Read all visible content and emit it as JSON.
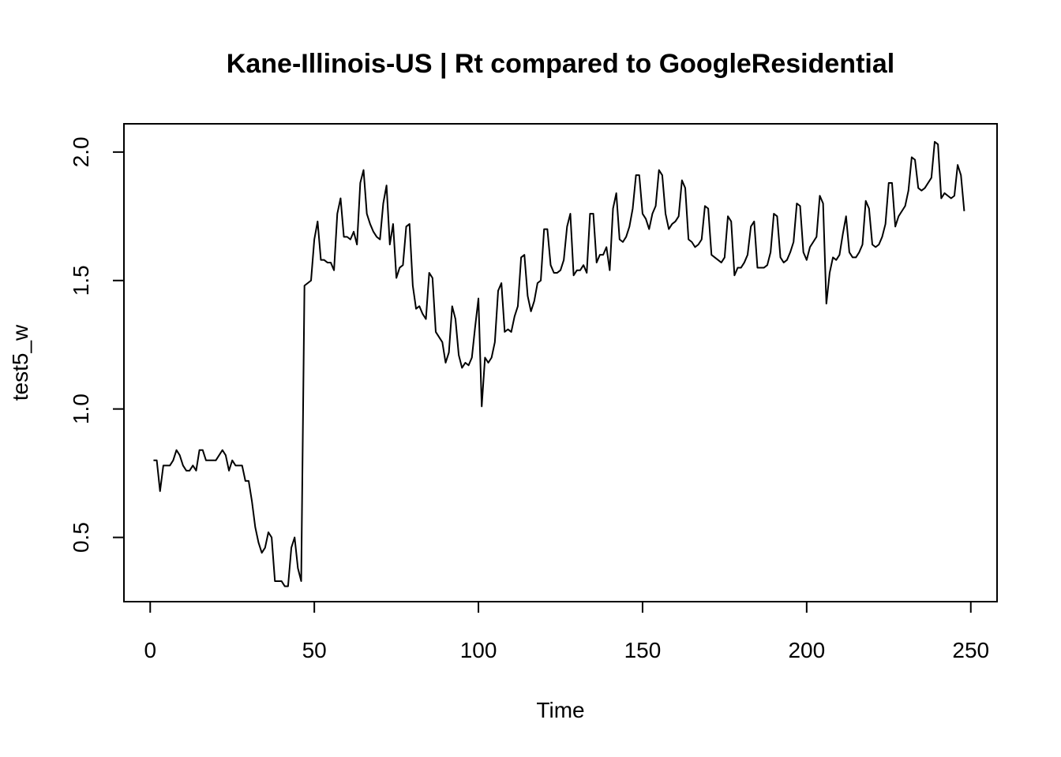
{
  "chart_data": {
    "type": "line",
    "title": "Kane-Illinois-US | Rt compared to GoogleResidential",
    "xlabel": "Time",
    "ylabel": "test5_w",
    "xlim": [
      -8,
      258
    ],
    "ylim": [
      0.25,
      2.11
    ],
    "x_ticks": [
      0,
      50,
      100,
      150,
      200,
      250
    ],
    "x_tick_labels": [
      "0",
      "50",
      "100",
      "150",
      "200",
      "250"
    ],
    "y_ticks": [
      0.5,
      1.0,
      1.5,
      2.0
    ],
    "y_tick_labels": [
      "0.5",
      "1.0",
      "1.5",
      "2.0"
    ],
    "grid": false,
    "legend": "none",
    "series": [
      {
        "x_start": 1,
        "values": [
          0.8,
          0.8,
          0.68,
          0.78,
          0.78,
          0.78,
          0.8,
          0.84,
          0.82,
          0.78,
          0.76,
          0.76,
          0.78,
          0.76,
          0.84,
          0.84,
          0.8,
          0.8,
          0.8,
          0.8,
          0.82,
          0.84,
          0.82,
          0.76,
          0.8,
          0.78,
          0.78,
          0.78,
          0.72,
          0.72,
          0.64,
          0.54,
          0.48,
          0.44,
          0.46,
          0.52,
          0.5,
          0.33,
          0.33,
          0.33,
          0.31,
          0.31,
          0.46,
          0.5,
          0.38,
          0.33,
          1.48,
          1.49,
          1.5,
          1.66,
          1.73,
          1.58,
          1.58,
          1.57,
          1.57,
          1.54,
          1.76,
          1.82,
          1.67,
          1.67,
          1.66,
          1.69,
          1.64,
          1.88,
          1.93,
          1.76,
          1.72,
          1.69,
          1.67,
          1.66,
          1.8,
          1.87,
          1.64,
          1.72,
          1.51,
          1.55,
          1.56,
          1.71,
          1.72,
          1.48,
          1.39,
          1.4,
          1.37,
          1.35,
          1.53,
          1.51,
          1.3,
          1.28,
          1.26,
          1.18,
          1.22,
          1.4,
          1.35,
          1.21,
          1.16,
          1.18,
          1.17,
          1.2,
          1.32,
          1.43,
          1.01,
          1.2,
          1.18,
          1.2,
          1.26,
          1.46,
          1.49,
          1.3,
          1.31,
          1.3,
          1.36,
          1.4,
          1.59,
          1.6,
          1.44,
          1.38,
          1.42,
          1.49,
          1.5,
          1.7,
          1.7,
          1.56,
          1.53,
          1.53,
          1.54,
          1.58,
          1.71,
          1.76,
          1.52,
          1.54,
          1.54,
          1.56,
          1.53,
          1.76,
          1.76,
          1.57,
          1.6,
          1.6,
          1.63,
          1.54,
          1.78,
          1.84,
          1.66,
          1.65,
          1.67,
          1.71,
          1.78,
          1.91,
          1.91,
          1.76,
          1.74,
          1.7,
          1.76,
          1.79,
          1.93,
          1.91,
          1.76,
          1.7,
          1.72,
          1.73,
          1.75,
          1.89,
          1.86,
          1.66,
          1.65,
          1.63,
          1.64,
          1.66,
          1.79,
          1.78,
          1.6,
          1.59,
          1.58,
          1.57,
          1.59,
          1.75,
          1.73,
          1.52,
          1.55,
          1.55,
          1.57,
          1.6,
          1.71,
          1.73,
          1.55,
          1.55,
          1.55,
          1.56,
          1.61,
          1.76,
          1.75,
          1.59,
          1.57,
          1.58,
          1.61,
          1.65,
          1.8,
          1.79,
          1.61,
          1.58,
          1.63,
          1.65,
          1.67,
          1.83,
          1.8,
          1.41,
          1.53,
          1.59,
          1.58,
          1.6,
          1.68,
          1.75,
          1.61,
          1.59,
          1.59,
          1.61,
          1.64,
          1.81,
          1.78,
          1.64,
          1.63,
          1.64,
          1.67,
          1.72,
          1.88,
          1.88,
          1.71,
          1.75,
          1.77,
          1.79,
          1.85,
          1.98,
          1.97,
          1.86,
          1.85,
          1.86,
          1.88,
          1.9,
          2.04,
          2.03,
          1.82,
          1.84,
          1.83,
          1.82,
          1.83,
          1.95,
          1.91,
          1.77
        ]
      }
    ]
  }
}
